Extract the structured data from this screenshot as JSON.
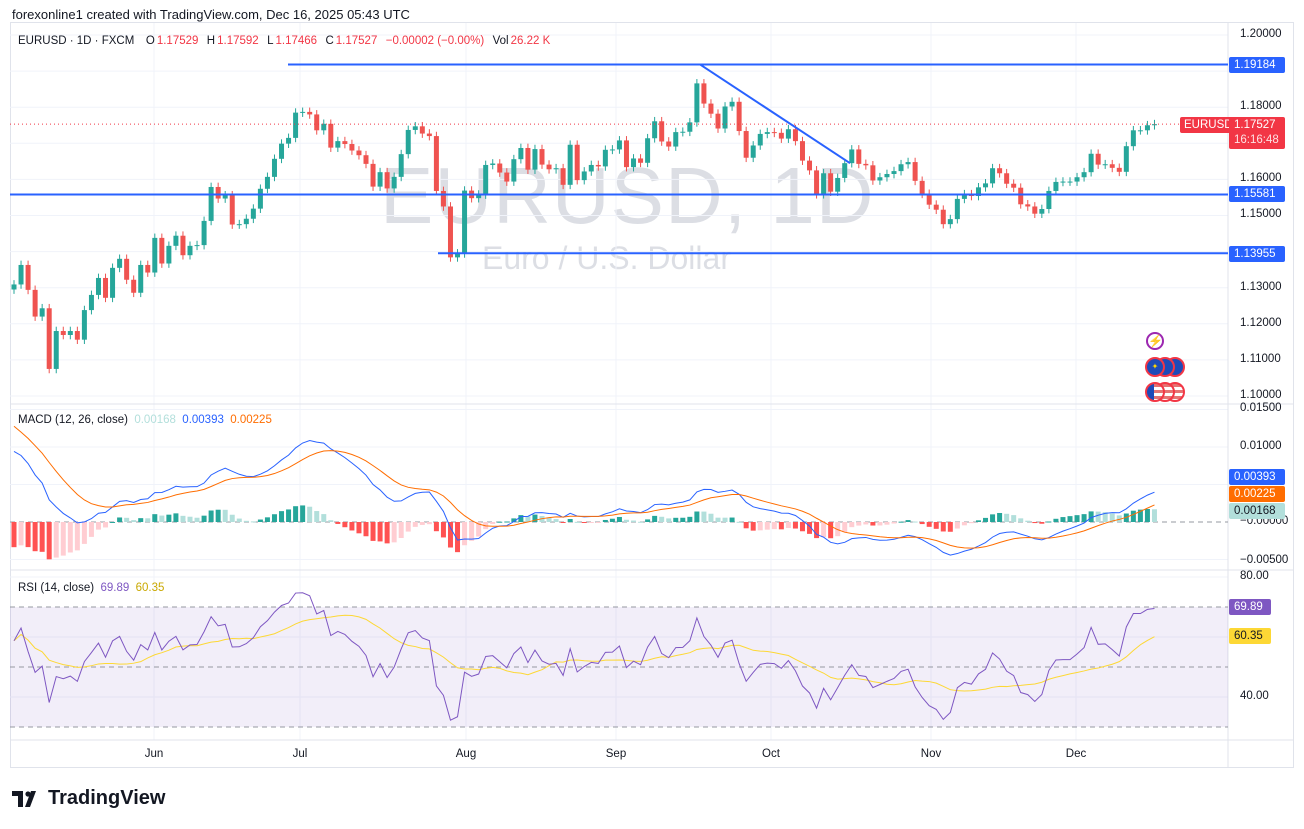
{
  "attribution": "forexonline1 created with TradingView.com, Dec 16, 2025 05:43 UTC",
  "legend": {
    "symbol": "EURUSD · 1D · FXCM",
    "o_label": "O",
    "o": "1.17529",
    "h_label": "H",
    "h": "1.17592",
    "l_label": "L",
    "l": "1.17466",
    "c_label": "C",
    "c": "1.17527",
    "change": "−0.00002 (−0.00%)",
    "vol_label": "Vol",
    "vol": "26.22 K"
  },
  "watermark": {
    "title": "EURUSD, 1D",
    "subtitle": "Euro / U.S. Dollar"
  },
  "price_axis": {
    "ticks": [
      "1.20000",
      "1.18000",
      "1.16000",
      "1.15000",
      "1.13000",
      "1.12000",
      "1.11000",
      "1.10000"
    ],
    "symbol_tag": "EURUSD",
    "last_price": "1.17527",
    "countdown": "16:16:48",
    "level_badges": [
      "1.19184",
      "1.15581",
      "1.13955"
    ]
  },
  "macd": {
    "title": "MACD (12, 26, close)",
    "histogram": "0.00168",
    "macd": "0.00393",
    "signal": "0.00225",
    "ticks": [
      "0.01500",
      "0.01000",
      "−0.00000",
      "−0.00500"
    ]
  },
  "rsi": {
    "title": "RSI (14, close)",
    "rsi": "69.89",
    "ma": "60.35",
    "ticks": [
      "80.00",
      "40.00"
    ]
  },
  "time_axis": [
    "Jun",
    "Jul",
    "Aug",
    "Sep",
    "Oct",
    "Nov",
    "Dec"
  ],
  "branding": {
    "logo_text": "TradingView"
  },
  "icons": [
    "lightning-icon",
    "eu-flag-events-icon",
    "us-flag-events-icon"
  ],
  "colors": {
    "up": "#26a69a",
    "down": "#ef5350",
    "drawing": "#2962ff",
    "macd": "#2962ff",
    "signal": "#ff6d00",
    "rsi": "#7e57c2",
    "rsi_ma": "#fdd835",
    "last_price": "#f23645"
  },
  "chart_data": {
    "type": "candlestick",
    "symbol": "EURUSD",
    "interval": "1D",
    "ylim": [
      1.1,
      1.2
    ],
    "first_open": 1.1295,
    "closes": [
      1.1309,
      1.1363,
      1.1294,
      1.122,
      1.1243,
      1.1075,
      1.118,
      1.1169,
      1.118,
      1.1156,
      1.1238,
      1.128,
      1.1327,
      1.1272,
      1.1355,
      1.138,
      1.1322,
      1.1286,
      1.1363,
      1.1342,
      1.1438,
      1.1367,
      1.1416,
      1.1444,
      1.139,
      1.1416,
      1.1418,
      1.1485,
      1.1579,
      1.1547,
      1.1556,
      1.1475,
      1.1476,
      1.1491,
      1.1519,
      1.1574,
      1.1607,
      1.1657,
      1.1699,
      1.1715,
      1.1785,
      1.1787,
      1.178,
      1.1736,
      1.1754,
      1.1688,
      1.1706,
      1.1698,
      1.168,
      1.1667,
      1.1643,
      1.158,
      1.162,
      1.1575,
      1.1607,
      1.167,
      1.1737,
      1.1747,
      1.1727,
      1.172,
      1.1568,
      1.1525,
      1.1384,
      1.1395,
      1.1569,
      1.1548,
      1.1558,
      1.164,
      1.1644,
      1.1619,
      1.1594,
      1.1656,
      1.1687,
      1.1627,
      1.1684,
      1.1641,
      1.1628,
      1.1631,
      1.1585,
      1.1696,
      1.1598,
      1.1622,
      1.164,
      1.1636,
      1.1682,
      1.1683,
      1.1708,
      1.1634,
      1.1658,
      1.1646,
      1.1714,
      1.1761,
      1.1705,
      1.1691,
      1.1731,
      1.1732,
      1.1758,
      1.1866,
      1.181,
      1.1782,
      1.1741,
      1.1802,
      1.1815,
      1.1734,
      1.166,
      1.1694,
      1.1726,
      1.1731,
      1.1729,
      1.1713,
      1.1739,
      1.1706,
      1.1652,
      1.1625,
      1.1559,
      1.1617,
      1.1566,
      1.1604,
      1.1645,
      1.1683,
      1.1643,
      1.1639,
      1.1597,
      1.1606,
      1.1615,
      1.1623,
      1.1642,
      1.1648,
      1.1596,
      1.156,
      1.153,
      1.1516,
      1.1476,
      1.149,
      1.1546,
      1.1559,
      1.1554,
      1.1578,
      1.1589,
      1.1631,
      1.1617,
      1.1588,
      1.1577,
      1.1531,
      1.1525,
      1.1505,
      1.1518,
      1.1568,
      1.1593,
      1.1594,
      1.1594,
      1.1606,
      1.162,
      1.1671,
      1.1641,
      1.1642,
      1.1632,
      1.1621,
      1.1692,
      1.1736,
      1.1736,
      1.175,
      1.1753
    ],
    "horizontal_levels": [
      1.19184,
      1.15581,
      1.13955
    ],
    "trendline": {
      "from_price": 1.19184,
      "to_price": 1.1645
    },
    "indicators": {
      "macd": {
        "fast": 12,
        "slow": 26,
        "source": "close",
        "ylim": [
          -0.0055,
          0.015
        ]
      },
      "rsi": {
        "length": 14,
        "source": "close",
        "ylim": [
          20,
          85
        ],
        "bands": [
          70,
          50,
          30
        ]
      }
    },
    "grid": true
  }
}
